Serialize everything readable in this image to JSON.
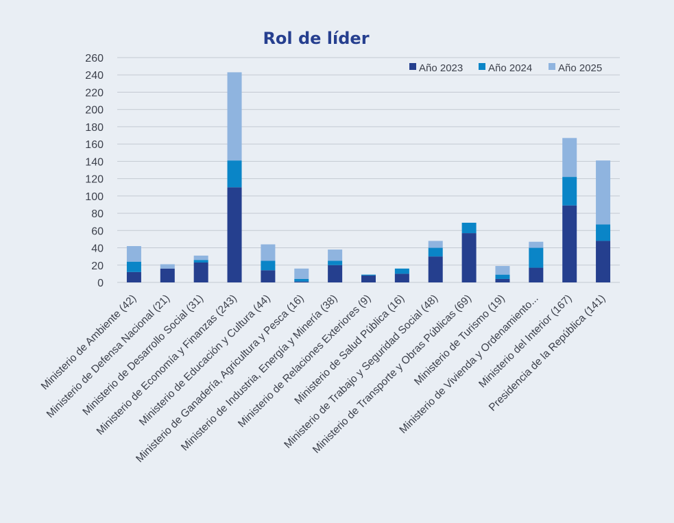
{
  "colors": {
    "background": "#e9eef4",
    "title": "#263f8f"
  },
  "chart_data": {
    "type": "bar",
    "stacked": true,
    "title": "Rol de líder",
    "xlabel": "",
    "ylabel": "",
    "ylim": [
      0,
      260
    ],
    "yticks": [
      0,
      20,
      40,
      60,
      80,
      100,
      120,
      140,
      160,
      180,
      200,
      220,
      240,
      260
    ],
    "grid": true,
    "legend_position": "top-right",
    "categories": [
      "Ministerio de Ambiente (42)",
      "Ministerio de Defensa Nacional (21)",
      "Ministerio de Desarrollo Social (31)",
      "Ministerio de Economía y Finanzas (243)",
      "Ministerio de Educación y Cultura (44)",
      "Ministerio de Ganadería, Agricultura y Pesca (16)",
      "Ministerio de Industria, Energía y Minería (38)",
      "Ministerio de Relaciones Exteriores (9)",
      "Ministerio de Salud Pública (16)",
      "Ministerio de Trabajo y Seguridad Social (48)",
      "Ministerio de Transporte y Obras Públicas (69)",
      "Ministerio de Turismo (19)",
      "Ministerio de Vivienda y Ordenamiento...",
      "Ministerio del Interior (167)",
      "Presidencia de la República (141)"
    ],
    "series": [
      {
        "name": "Año 2023",
        "color": "#253f8e",
        "values": [
          12,
          16,
          23,
          110,
          14,
          1,
          20,
          8,
          10,
          30,
          57,
          4,
          17,
          89,
          48
        ]
      },
      {
        "name": "Año 2024",
        "color": "#0a85c7",
        "values": [
          12,
          0,
          3,
          31,
          11,
          3,
          5,
          1,
          6,
          10,
          12,
          5,
          23,
          33,
          19
        ]
      },
      {
        "name": "Año 2025",
        "color": "#8fb4df",
        "values": [
          18,
          5,
          5,
          102,
          19,
          12,
          13,
          0,
          0,
          8,
          0,
          10,
          7,
          45,
          74
        ]
      }
    ]
  }
}
